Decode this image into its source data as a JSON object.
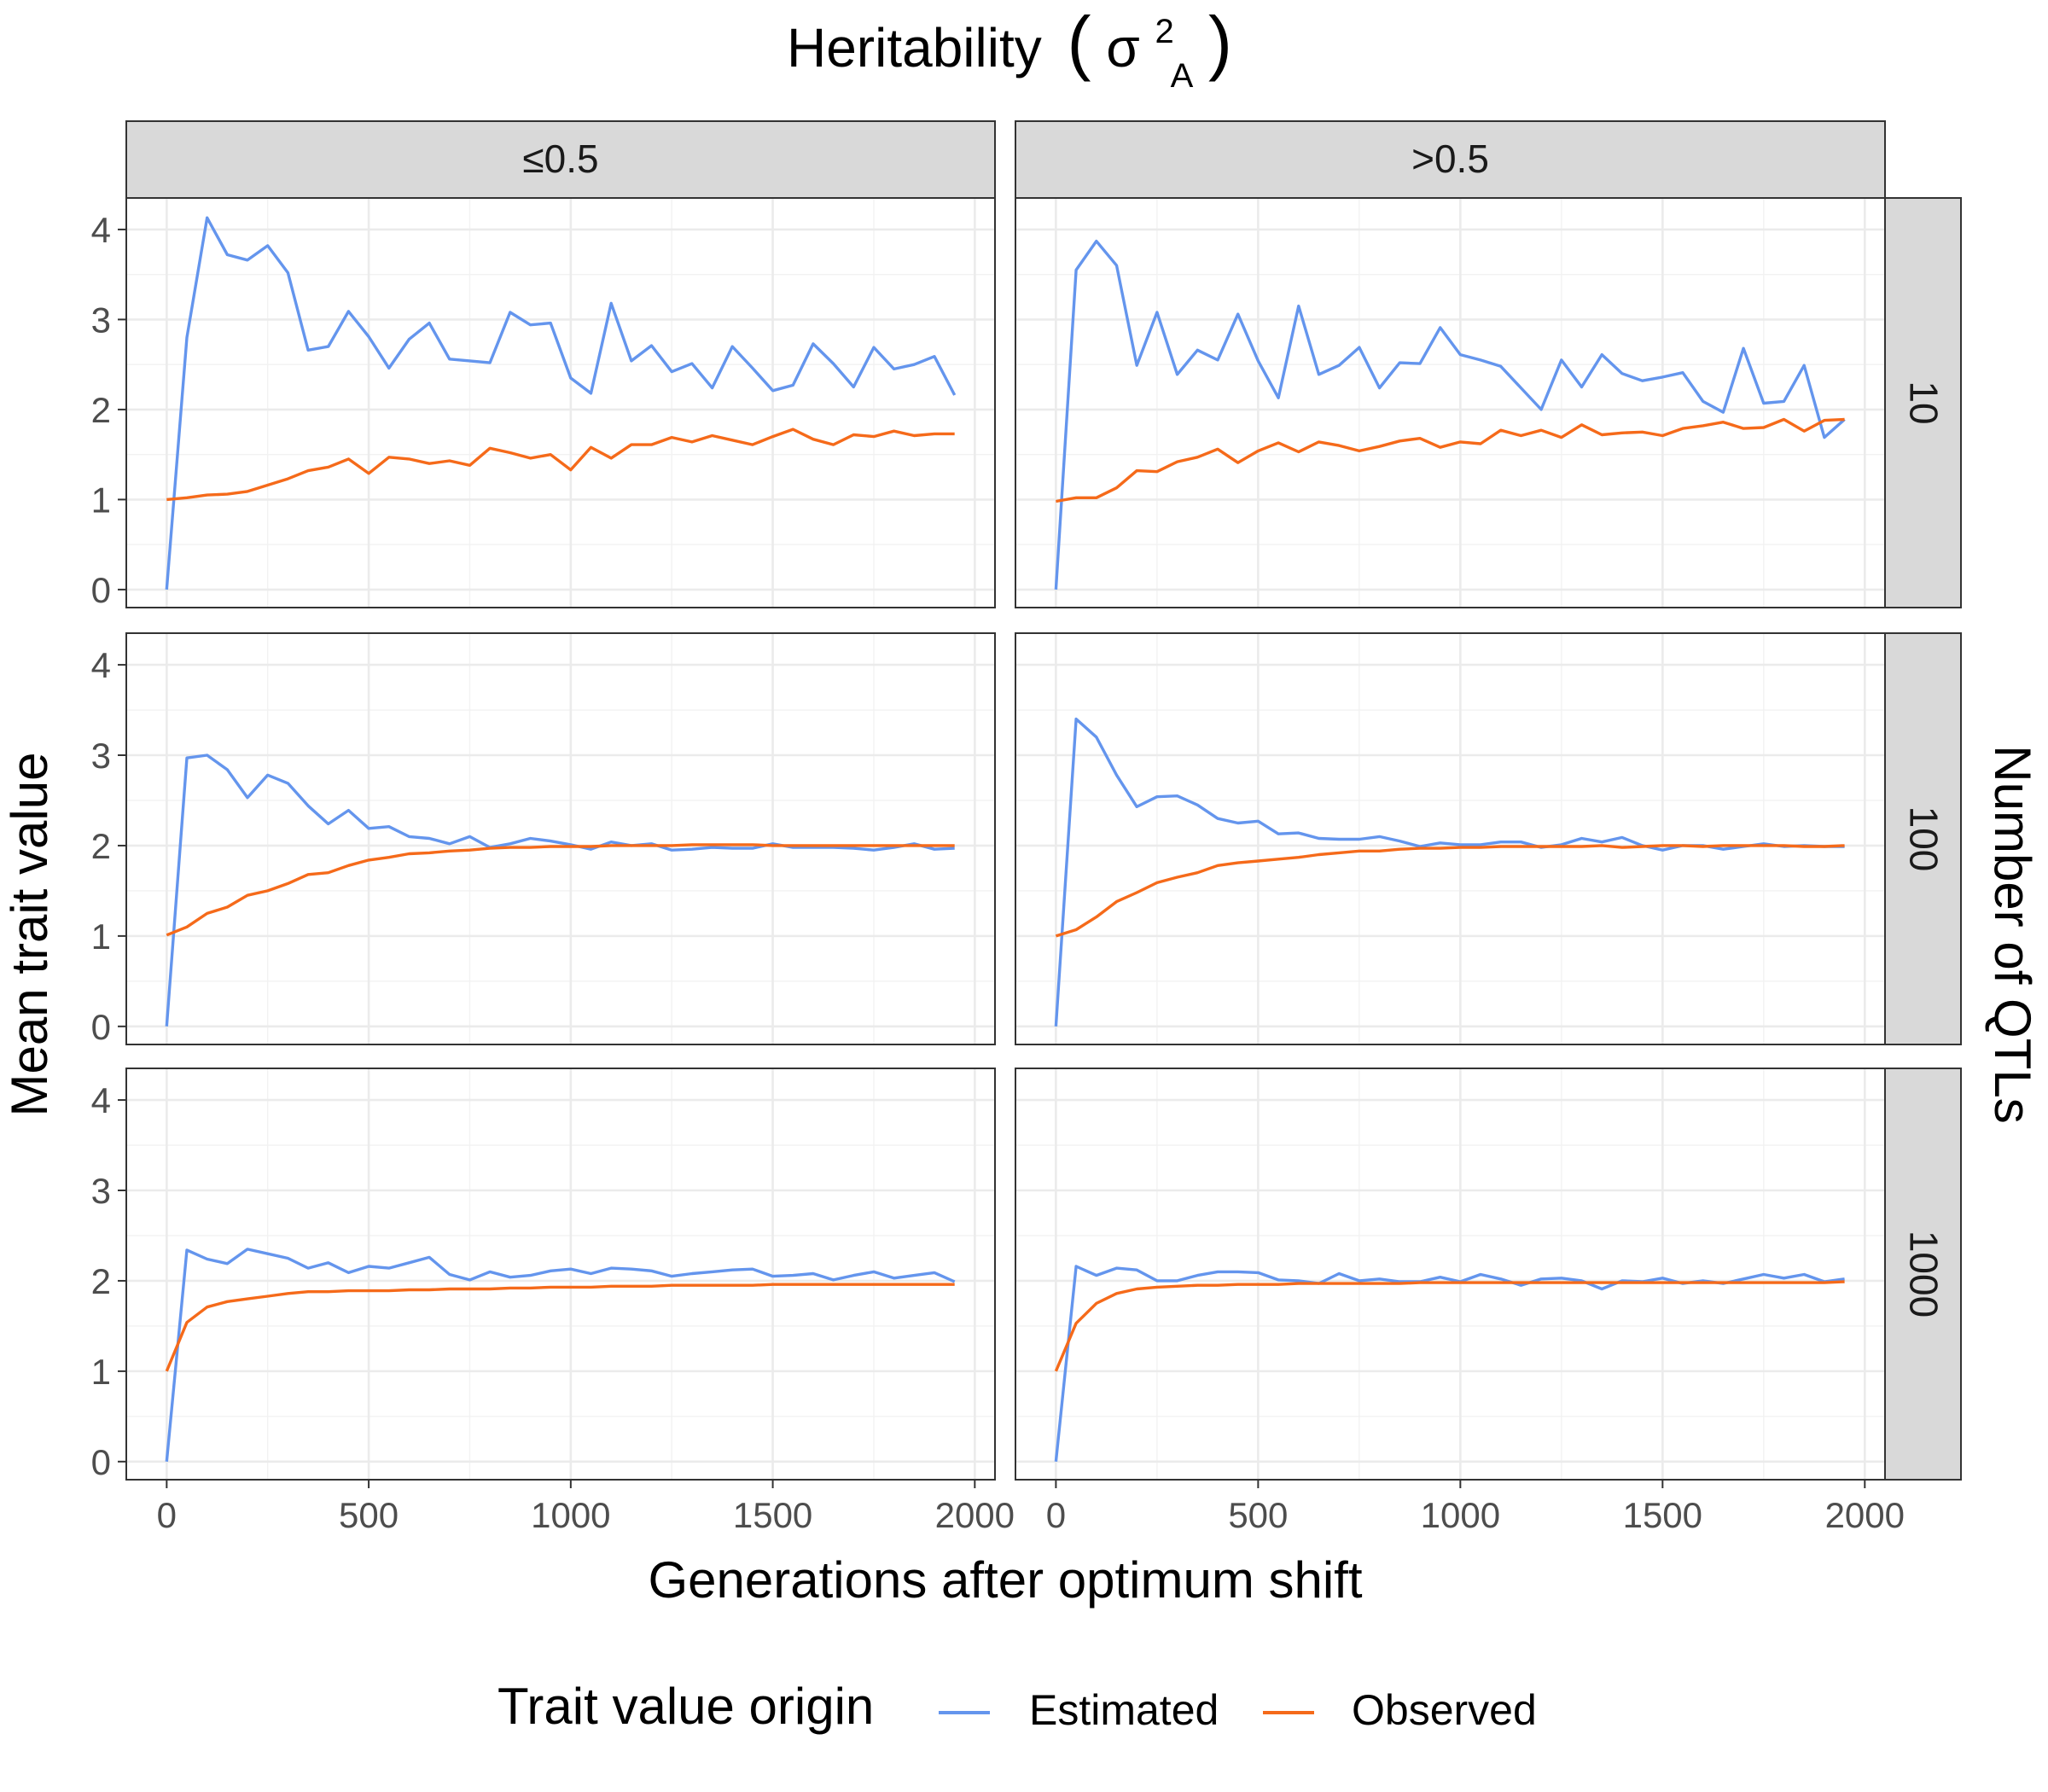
{
  "figure": {
    "top_title": "Heritability",
    "top_title_symbol": "σ",
    "top_title_superscript": "2",
    "top_title_subscript": "A",
    "left_title": "Mean trait value",
    "right_title": "Number of QTLs",
    "bottom_title": "Generations after optimum shift",
    "col_strips": [
      "≤0.5",
      ">0.5"
    ],
    "row_strips": [
      "10",
      "100",
      "1000"
    ],
    "legend": {
      "title": "Trait value origin",
      "entries": [
        {
          "label": "Estimated",
          "color": "#6495ED"
        },
        {
          "label": "Observed",
          "color": "#F56A1A"
        }
      ]
    }
  },
  "chart_data": {
    "type": "line",
    "layout": "facet-grid",
    "xlabel": "Generations after optimum shift",
    "ylabel": "Mean trait value",
    "xlim": [
      -100,
      2050
    ],
    "ylim": [
      -0.2,
      4.35
    ],
    "x_ticks": [
      0,
      500,
      1000,
      1500,
      2000
    ],
    "y_ticks": [
      0,
      1,
      2,
      3,
      4
    ],
    "grid": true,
    "legend_position": "bottom",
    "x": [
      0,
      50,
      100,
      150,
      200,
      250,
      300,
      350,
      400,
      450,
      500,
      550,
      600,
      650,
      700,
      750,
      800,
      850,
      900,
      950,
      1000,
      1050,
      1100,
      1150,
      1200,
      1250,
      1300,
      1350,
      1400,
      1450,
      1500,
      1550,
      1600,
      1650,
      1700,
      1750,
      1800,
      1850,
      1900,
      1950
    ],
    "panels": [
      {
        "col": "≤0.5",
        "row": "10",
        "series": [
          {
            "name": "Estimated",
            "values": [
              0,
              2.8,
              4.13,
              3.72,
              3.66,
              3.82,
              3.52,
              2.66,
              2.7,
              3.09,
              2.81,
              2.46,
              2.78,
              2.96,
              2.56,
              2.54,
              2.52,
              3.08,
              2.94,
              2.96,
              2.35,
              2.18,
              3.18,
              2.54,
              2.71,
              2.42,
              2.51,
              2.24,
              2.7,
              2.46,
              2.21,
              2.27,
              2.73,
              2.51,
              2.25,
              2.69,
              2.45,
              2.5,
              2.59,
              2.16
            ]
          },
          {
            "name": "Observed",
            "values": [
              1.0,
              1.02,
              1.05,
              1.06,
              1.09,
              1.16,
              1.23,
              1.32,
              1.36,
              1.45,
              1.29,
              1.47,
              1.45,
              1.4,
              1.43,
              1.38,
              1.57,
              1.52,
              1.46,
              1.5,
              1.33,
              1.58,
              1.46,
              1.61,
              1.61,
              1.69,
              1.64,
              1.71,
              1.66,
              1.61,
              1.7,
              1.78,
              1.67,
              1.61,
              1.72,
              1.7,
              1.76,
              1.71,
              1.73,
              1.73
            ]
          }
        ]
      },
      {
        "col": ">0.5",
        "row": "10",
        "series": [
          {
            "name": "Estimated",
            "values": [
              0,
              3.55,
              3.87,
              3.6,
              2.49,
              3.08,
              2.39,
              2.66,
              2.55,
              3.06,
              2.54,
              2.13,
              3.15,
              2.39,
              2.49,
              2.69,
              2.24,
              2.52,
              2.51,
              2.91,
              2.61,
              2.55,
              2.48,
              2.24,
              2.0,
              2.55,
              2.25,
              2.61,
              2.4,
              2.32,
              2.36,
              2.41,
              2.09,
              1.97,
              2.68,
              2.07,
              2.09,
              2.49,
              1.69,
              1.89
            ]
          },
          {
            "name": "Observed",
            "values": [
              0.98,
              1.02,
              1.02,
              1.13,
              1.32,
              1.31,
              1.42,
              1.47,
              1.56,
              1.41,
              1.54,
              1.63,
              1.53,
              1.64,
              1.6,
              1.54,
              1.59,
              1.65,
              1.68,
              1.58,
              1.64,
              1.62,
              1.77,
              1.71,
              1.77,
              1.69,
              1.83,
              1.72,
              1.74,
              1.75,
              1.71,
              1.79,
              1.82,
              1.86,
              1.79,
              1.8,
              1.89,
              1.76,
              1.88,
              1.89
            ]
          }
        ]
      },
      {
        "col": "≤0.5",
        "row": "100",
        "series": [
          {
            "name": "Estimated",
            "values": [
              0,
              2.97,
              3.0,
              2.84,
              2.53,
              2.78,
              2.69,
              2.44,
              2.24,
              2.39,
              2.19,
              2.21,
              2.1,
              2.08,
              2.02,
              2.1,
              1.98,
              2.02,
              2.08,
              2.05,
              2.01,
              1.96,
              2.04,
              2.0,
              2.02,
              1.95,
              1.96,
              1.98,
              1.97,
              1.97,
              2.02,
              1.98,
              1.98,
              1.98,
              1.97,
              1.95,
              1.98,
              2.02,
              1.96,
              1.97
            ]
          },
          {
            "name": "Observed",
            "values": [
              1.01,
              1.1,
              1.25,
              1.32,
              1.45,
              1.5,
              1.58,
              1.68,
              1.7,
              1.78,
              1.84,
              1.87,
              1.91,
              1.92,
              1.94,
              1.95,
              1.97,
              1.98,
              1.98,
              1.99,
              1.99,
              1.99,
              2.0,
              2.0,
              2.0,
              2.0,
              2.01,
              2.01,
              2.01,
              2.01,
              2.0,
              2.0,
              2.0,
              2.0,
              2.0,
              2.0,
              2.0,
              2.0,
              2.0,
              2.0
            ]
          }
        ]
      },
      {
        "col": ">0.5",
        "row": "100",
        "series": [
          {
            "name": "Estimated",
            "values": [
              0,
              3.4,
              3.2,
              2.78,
              2.43,
              2.54,
              2.55,
              2.45,
              2.3,
              2.25,
              2.27,
              2.13,
              2.14,
              2.08,
              2.07,
              2.07,
              2.1,
              2.05,
              1.99,
              2.03,
              2.01,
              2.01,
              2.04,
              2.04,
              1.98,
              2.01,
              2.08,
              2.04,
              2.09,
              2.0,
              1.95,
              2.0,
              2.0,
              1.96,
              1.99,
              2.02,
              1.99,
              2.0,
              1.99,
              1.99
            ]
          },
          {
            "name": "Observed",
            "values": [
              1.0,
              1.07,
              1.21,
              1.38,
              1.48,
              1.59,
              1.65,
              1.7,
              1.78,
              1.81,
              1.83,
              1.85,
              1.87,
              1.9,
              1.92,
              1.94,
              1.94,
              1.96,
              1.97,
              1.97,
              1.98,
              1.98,
              1.99,
              1.99,
              1.99,
              1.99,
              1.99,
              2.0,
              1.98,
              1.99,
              2.0,
              2.0,
              1.99,
              2.0,
              2.0,
              2.0,
              2.0,
              1.99,
              1.99,
              2.0
            ]
          }
        ]
      },
      {
        "col": "≤0.5",
        "row": "1000",
        "series": [
          {
            "name": "Estimated",
            "values": [
              0,
              2.34,
              2.24,
              2.19,
              2.35,
              2.3,
              2.25,
              2.14,
              2.2,
              2.09,
              2.16,
              2.14,
              2.2,
              2.26,
              2.07,
              2.01,
              2.1,
              2.04,
              2.06,
              2.11,
              2.13,
              2.08,
              2.14,
              2.13,
              2.11,
              2.05,
              2.08,
              2.1,
              2.12,
              2.13,
              2.05,
              2.06,
              2.08,
              2.01,
              2.06,
              2.1,
              2.03,
              2.06,
              2.09,
              1.99
            ]
          },
          {
            "name": "Observed",
            "values": [
              1.0,
              1.54,
              1.71,
              1.77,
              1.8,
              1.83,
              1.86,
              1.88,
              1.88,
              1.89,
              1.89,
              1.89,
              1.9,
              1.9,
              1.91,
              1.91,
              1.91,
              1.92,
              1.92,
              1.93,
              1.93,
              1.93,
              1.94,
              1.94,
              1.94,
              1.95,
              1.95,
              1.95,
              1.95,
              1.95,
              1.96,
              1.96,
              1.96,
              1.96,
              1.96,
              1.96,
              1.96,
              1.96,
              1.96,
              1.96
            ]
          }
        ]
      },
      {
        "col": ">0.5",
        "row": "1000",
        "series": [
          {
            "name": "Estimated",
            "values": [
              0,
              2.16,
              2.06,
              2.14,
              2.12,
              2.0,
              2.0,
              2.06,
              2.1,
              2.1,
              2.09,
              2.01,
              2.0,
              1.97,
              2.08,
              2.0,
              2.02,
              1.99,
              1.99,
              2.04,
              1.99,
              2.07,
              2.02,
              1.95,
              2.02,
              2.03,
              2.0,
              1.91,
              2.0,
              1.99,
              2.03,
              1.97,
              2.0,
              1.97,
              2.02,
              2.07,
              2.03,
              2.07,
              1.99,
              2.02
            ]
          },
          {
            "name": "Observed",
            "values": [
              1.0,
              1.53,
              1.75,
              1.86,
              1.91,
              1.93,
              1.94,
              1.95,
              1.95,
              1.96,
              1.96,
              1.96,
              1.97,
              1.97,
              1.97,
              1.97,
              1.97,
              1.97,
              1.98,
              1.98,
              1.98,
              1.98,
              1.98,
              1.98,
              1.98,
              1.98,
              1.98,
              1.98,
              1.98,
              1.98,
              1.98,
              1.98,
              1.98,
              1.98,
              1.98,
              1.98,
              1.98,
              1.98,
              1.98,
              1.99
            ]
          }
        ]
      }
    ]
  }
}
